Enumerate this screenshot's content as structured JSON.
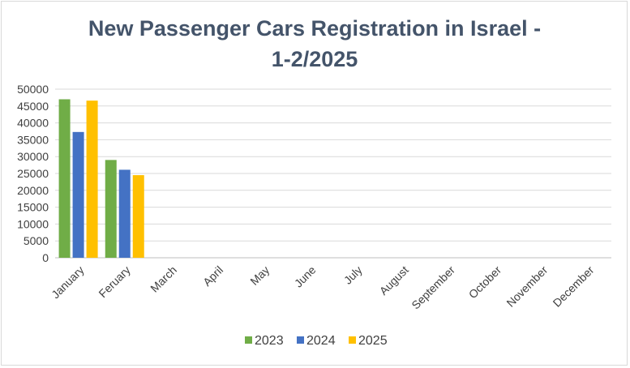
{
  "chart_data": {
    "type": "bar",
    "title_line1": "New Passenger Cars Registration in Israel -",
    "title_line2": "1-2/2025",
    "xlabel": "",
    "ylabel": "",
    "ylim": [
      0,
      50000
    ],
    "yticks": [
      "0",
      "5000",
      "10000",
      "15000",
      "20000",
      "25000",
      "30000",
      "35000",
      "40000",
      "45000",
      "50000"
    ],
    "ytick_values": [
      0,
      5000,
      10000,
      15000,
      20000,
      25000,
      30000,
      35000,
      40000,
      45000,
      50000
    ],
    "categories": [
      "January",
      "Feruary",
      "March",
      "April",
      "May",
      "June",
      "July",
      "August",
      "September",
      "October",
      "November",
      "December"
    ],
    "series": [
      {
        "name": "2023",
        "color": "#70ad47",
        "values": [
          47000,
          29000,
          null,
          null,
          null,
          null,
          null,
          null,
          null,
          null,
          null,
          null
        ]
      },
      {
        "name": "2024",
        "color": "#4472c4",
        "values": [
          37300,
          26100,
          null,
          null,
          null,
          null,
          null,
          null,
          null,
          null,
          null,
          null
        ]
      },
      {
        "name": "2025",
        "color": "#ffc000",
        "values": [
          46600,
          24500,
          null,
          null,
          null,
          null,
          null,
          null,
          null,
          null,
          null,
          null
        ]
      }
    ],
    "grid": true,
    "legend_position": "bottom"
  }
}
